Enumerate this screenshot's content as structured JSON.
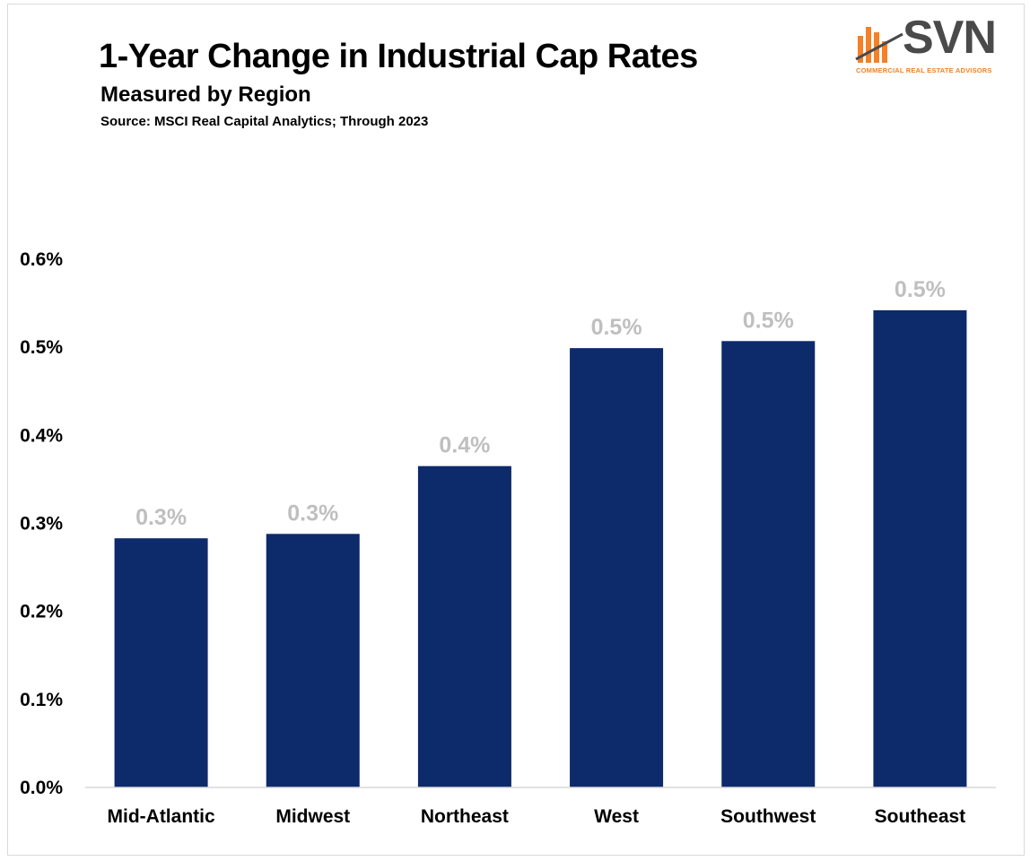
{
  "header": {
    "title": "1-Year Change in Industrial Cap Rates",
    "subtitle": "Measured by Region",
    "source": "Source: MSCI Real Capital Analytics; Through 2023"
  },
  "logo": {
    "name": "SVN",
    "tagline": "COMMERCIAL REAL ESTATE ADVISORS",
    "icon": "svn-bars-logo-icon"
  },
  "colors": {
    "bar": "#0d2a6b",
    "data_label": "#bfbfbf",
    "axis": "#d9d9d9",
    "logo_bars": "#f58025",
    "logo_text": "#4a4a4a"
  },
  "chart_data": {
    "type": "bar",
    "title": "1-Year Change in Industrial Cap Rates",
    "subtitle": "Measured by Region",
    "xlabel": "",
    "ylabel": "",
    "categories": [
      "Mid-Atlantic",
      "Midwest",
      "Northeast",
      "West",
      "Southwest",
      "Southeast"
    ],
    "values": [
      0.283,
      0.288,
      0.365,
      0.499,
      0.507,
      0.542
    ],
    "data_labels": [
      "0.3%",
      "0.3%",
      "0.4%",
      "0.5%",
      "0.5%",
      "0.5%"
    ],
    "ylim": [
      0,
      0.6
    ],
    "yticks": [
      0,
      0.1,
      0.2,
      0.3,
      0.4,
      0.5,
      0.6
    ],
    "ytick_labels": [
      "0.0%",
      "0.1%",
      "0.2%",
      "0.3%",
      "0.4%",
      "0.5%",
      "0.6%"
    ],
    "grid": false,
    "legend": "none"
  }
}
